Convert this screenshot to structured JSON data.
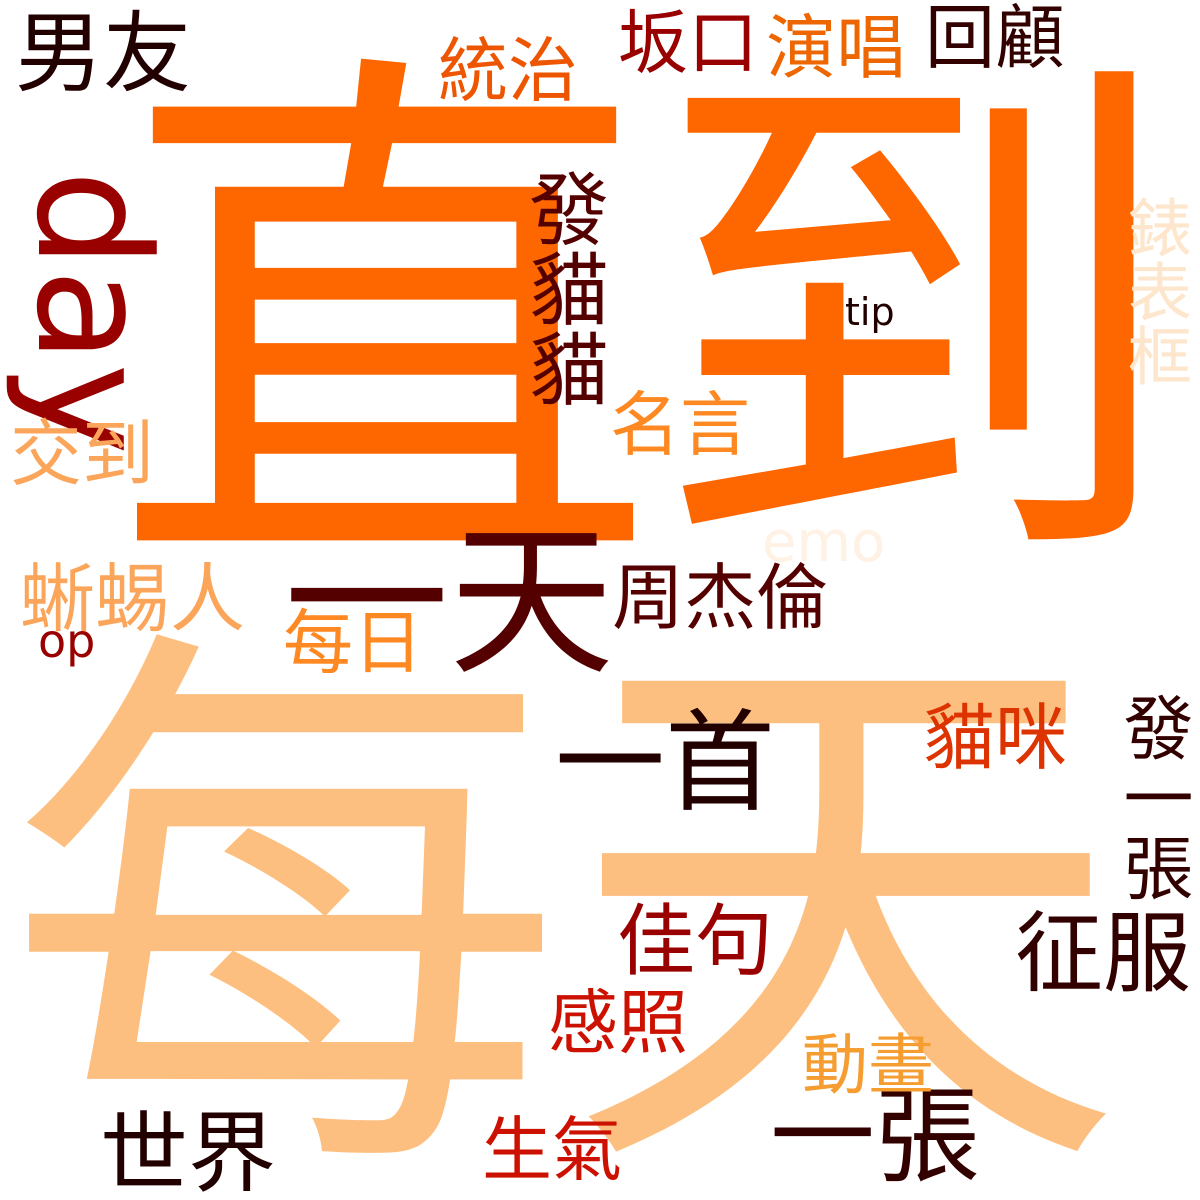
{
  "words": [
    {
      "text": "每天",
      "color": "#FDBF7F"
    },
    {
      "text": "直",
      "color": "#FE6600"
    },
    {
      "text": "到",
      "color": "#FE6600"
    },
    {
      "text": "一天",
      "color": "#540000"
    },
    {
      "text": "day",
      "color": "#990000"
    },
    {
      "text": "男友",
      "color": "#220000"
    },
    {
      "text": "一首",
      "color": "#220000"
    },
    {
      "text": "一張",
      "color": "#330000"
    },
    {
      "text": "世界",
      "color": "#220000"
    },
    {
      "text": "征服",
      "color": "#330000"
    },
    {
      "text": "佳句",
      "color": "#990000"
    },
    {
      "text": "周杰倫",
      "color": "#540000"
    },
    {
      "text": "回顧",
      "color": "#330000"
    },
    {
      "text": "坂口",
      "color": "#990000"
    },
    {
      "text": "發貓貓",
      "color": "#540000"
    },
    {
      "text": "發一張",
      "color": "#330000"
    },
    {
      "text": "蜥蜴人",
      "color": "#FBA55A"
    },
    {
      "text": "生氣",
      "color": "#CC1100"
    },
    {
      "text": "貓咪",
      "color": "#DD3300"
    },
    {
      "text": "感照",
      "color": "#CC1100"
    },
    {
      "text": "演唱",
      "color": "#EE6600"
    },
    {
      "text": "統治",
      "color": "#EE5500"
    },
    {
      "text": "交到",
      "color": "#FBA55A"
    },
    {
      "text": "名言",
      "color": "#FE8822"
    },
    {
      "text": "每日",
      "color": "#FE8822"
    },
    {
      "text": "動畫",
      "color": "#F59D30"
    },
    {
      "text": "錶表框",
      "color": "#FEE6CC"
    },
    {
      "text": "emo",
      "color": "#FFF1E3"
    },
    {
      "text": "op",
      "color": "#990000"
    },
    {
      "text": "tip",
      "color": "#220000"
    }
  ]
}
